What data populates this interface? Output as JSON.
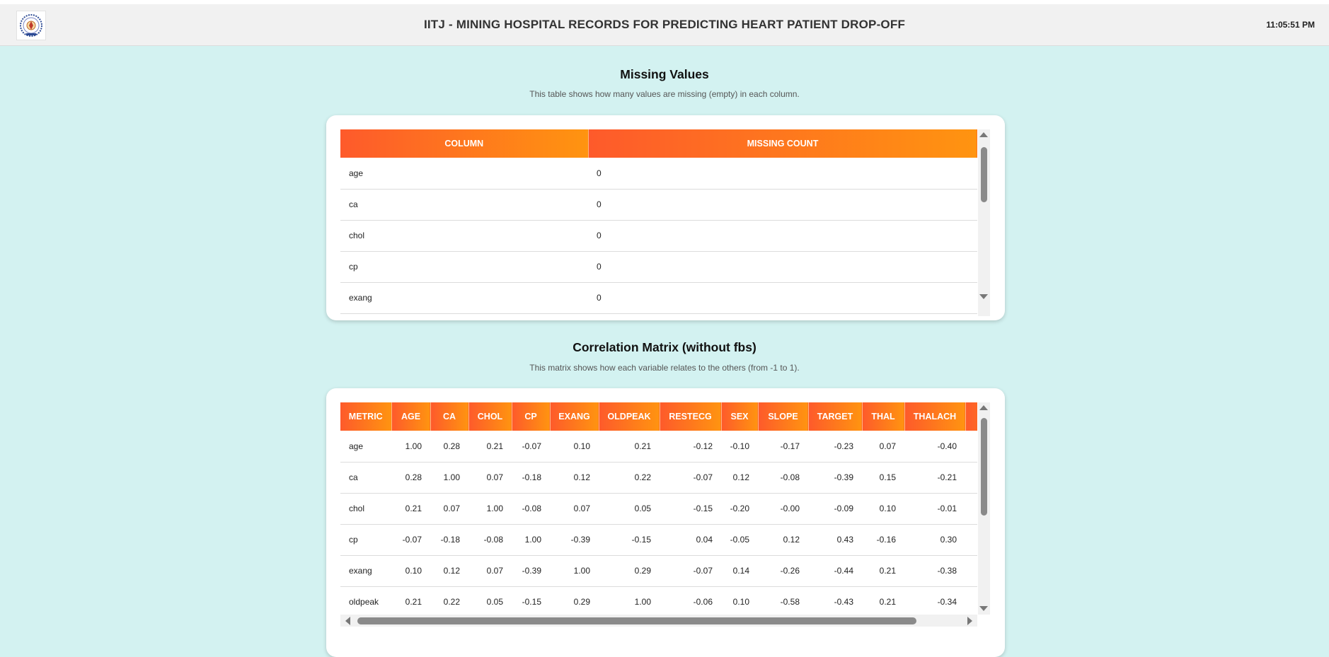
{
  "header": {
    "title": "IITJ - MINING HOSPITAL RECORDS FOR PREDICTING HEART PATIENT DROP-OFF",
    "time": "11:05:51 PM",
    "logo_icon": "iitj-logo-icon"
  },
  "missing": {
    "title": "Missing Values",
    "description": "This table shows how many values are missing (empty) in each column.",
    "headers": [
      "COLUMN",
      "MISSING COUNT"
    ],
    "rows": [
      [
        "age",
        "0"
      ],
      [
        "ca",
        "0"
      ],
      [
        "chol",
        "0"
      ],
      [
        "cp",
        "0"
      ],
      [
        "exang",
        "0"
      ]
    ]
  },
  "correlation": {
    "title": "Correlation Matrix (without fbs)",
    "description": "This matrix shows how each variable relates to the others (from -1 to 1).",
    "headers": [
      "METRIC",
      "AGE",
      "CA",
      "CHOL",
      "CP",
      "EXANG",
      "OLDPEAK",
      "RESTECG",
      "SEX",
      "SLOPE",
      "TARGET",
      "THAL",
      "THALACH"
    ],
    "rows": [
      [
        "age",
        "1.00",
        "0.28",
        "0.21",
        "-0.07",
        "0.10",
        "0.21",
        "-0.12",
        "-0.10",
        "-0.17",
        "-0.23",
        "0.07",
        "-0.40"
      ],
      [
        "ca",
        "0.28",
        "1.00",
        "0.07",
        "-0.18",
        "0.12",
        "0.22",
        "-0.07",
        "0.12",
        "-0.08",
        "-0.39",
        "0.15",
        "-0.21"
      ],
      [
        "chol",
        "0.21",
        "0.07",
        "1.00",
        "-0.08",
        "0.07",
        "0.05",
        "-0.15",
        "-0.20",
        "-0.00",
        "-0.09",
        "0.10",
        "-0.01"
      ],
      [
        "cp",
        "-0.07",
        "-0.18",
        "-0.08",
        "1.00",
        "-0.39",
        "-0.15",
        "0.04",
        "-0.05",
        "0.12",
        "0.43",
        "-0.16",
        "0.30"
      ],
      [
        "exang",
        "0.10",
        "0.12",
        "0.07",
        "-0.39",
        "1.00",
        "0.29",
        "-0.07",
        "0.14",
        "-0.26",
        "-0.44",
        "0.21",
        "-0.38"
      ],
      [
        "oldpeak",
        "0.21",
        "0.22",
        "0.05",
        "-0.15",
        "0.29",
        "1.00",
        "-0.06",
        "0.10",
        "-0.58",
        "-0.43",
        "0.21",
        "-0.34"
      ]
    ]
  },
  "colors": {
    "background": "#d3f2f1",
    "header_gradient_start": "#fe5a2b",
    "header_gradient_end": "#ff9410"
  }
}
